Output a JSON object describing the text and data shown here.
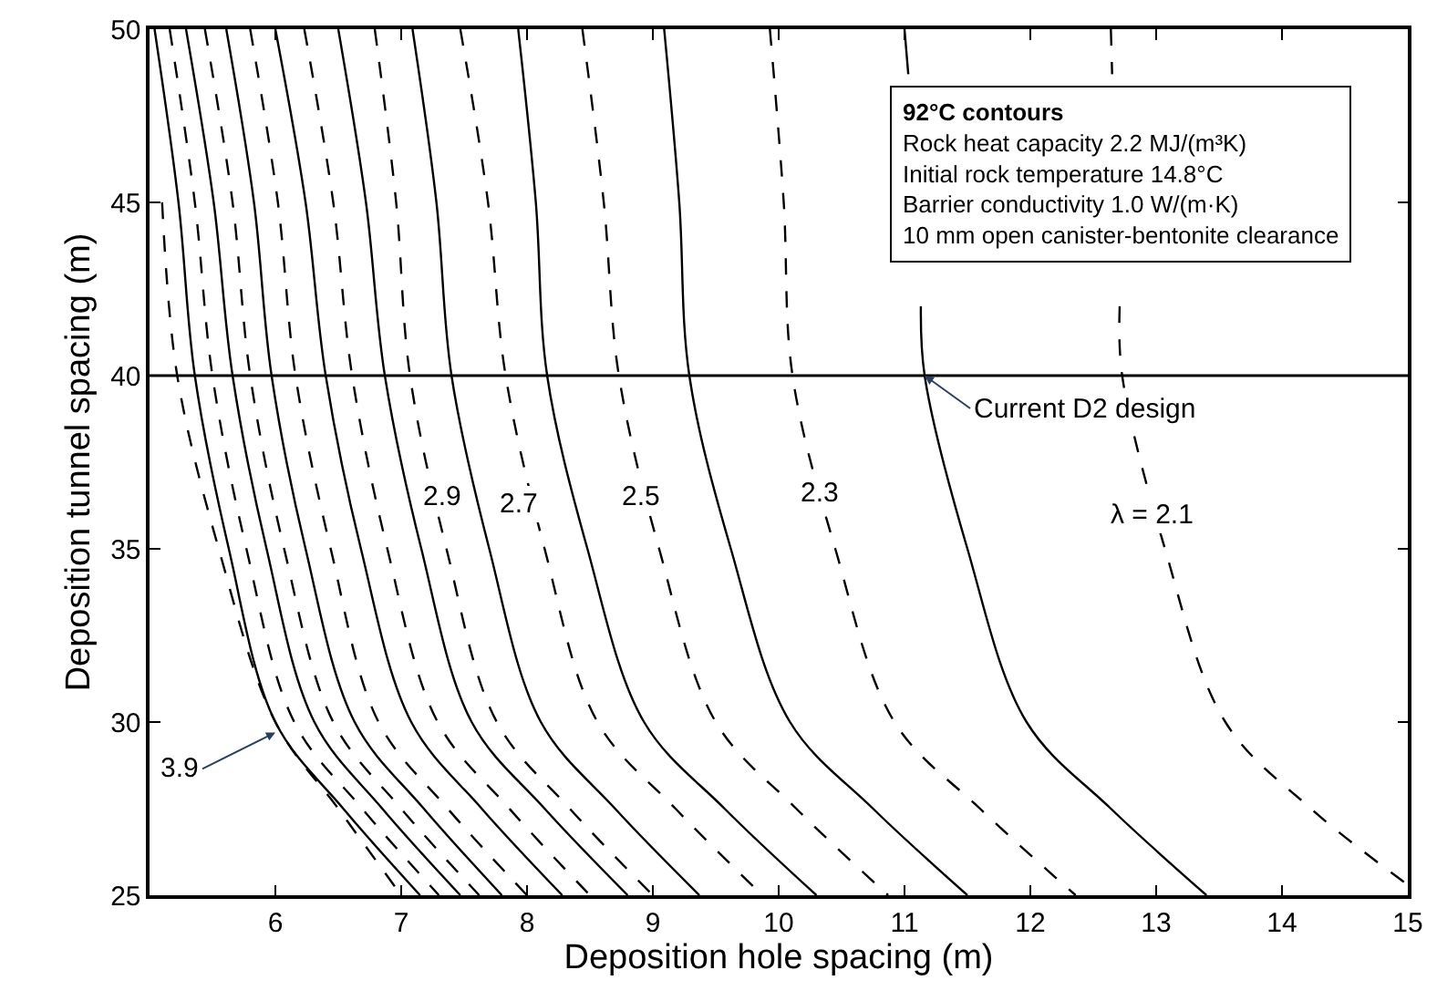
{
  "chart_data": {
    "type": "line",
    "xlabel": "Deposition hole spacing (m)",
    "ylabel": "Deposition tunnel spacing (m)",
    "xlim": [
      5,
      15
    ],
    "ylim": [
      25,
      50
    ],
    "xticks": [
      6,
      7,
      8,
      9,
      10,
      11,
      12,
      13,
      14,
      15
    ],
    "yticks": [
      25,
      30,
      35,
      40,
      45,
      50
    ],
    "marker": "none",
    "series": [
      {
        "color": "#000000",
        "line_style": "dashed",
        "x": [
          5.1,
          5.22,
          5.55,
          6.0,
          6.5,
          7.0
        ],
        "values": [
          45,
          40,
          35,
          30,
          27.5,
          25
        ]
      },
      {
        "color": "#000000",
        "line_style": "solid",
        "x": [
          5.04,
          5.23,
          5.36,
          5.63,
          6.0,
          6.54,
          7.15
        ],
        "values": [
          50,
          45,
          40,
          35,
          30,
          27.5,
          25
        ]
      },
      {
        "color": "#000000",
        "line_style": "dashed",
        "x": [
          5.16,
          5.36,
          5.5,
          5.77,
          6.15,
          6.69,
          7.3
        ],
        "values": [
          50,
          45,
          40,
          35,
          30,
          27.5,
          25
        ]
      },
      {
        "color": "#000000",
        "line_style": "solid",
        "x": [
          5.29,
          5.51,
          5.66,
          5.93,
          6.31,
          6.85,
          7.47
        ],
        "values": [
          50,
          45,
          40,
          35,
          30,
          27.5,
          25
        ]
      },
      {
        "color": "#000000",
        "line_style": "dashed",
        "x": [
          5.44,
          5.66,
          5.8,
          6.07,
          6.46,
          7.0,
          7.62
        ],
        "values": [
          50,
          45,
          40,
          35,
          30,
          27.5,
          25
        ]
      },
      {
        "color": "#000000",
        "line_style": "solid",
        "x": [
          5.61,
          5.83,
          5.97,
          6.24,
          6.63,
          7.18,
          7.8
        ],
        "values": [
          50,
          45,
          40,
          35,
          30,
          27.5,
          25
        ]
      },
      {
        "color": "#000000",
        "line_style": "dashed",
        "x": [
          5.8,
          6.02,
          6.16,
          6.44,
          6.82,
          7.37,
          8.0
        ],
        "values": [
          50,
          45,
          40,
          35,
          30,
          27.5,
          25
        ]
      },
      {
        "color": "#000000",
        "line_style": "solid",
        "x": [
          6.0,
          6.24,
          6.4,
          6.68,
          7.08,
          7.64,
          8.28
        ],
        "values": [
          50,
          45,
          40,
          35,
          30,
          27.5,
          25
        ]
      },
      {
        "color": "#000000",
        "line_style": "dashed",
        "x": [
          6.23,
          6.46,
          6.61,
          6.89,
          7.29,
          7.86,
          8.5
        ],
        "values": [
          50,
          45,
          40,
          35,
          30,
          27.5,
          25
        ]
      },
      {
        "color": "#000000",
        "line_style": "solid",
        "x": [
          6.5,
          6.72,
          6.87,
          7.16,
          7.56,
          8.14,
          8.8
        ],
        "values": [
          50,
          45,
          40,
          35,
          30,
          27.5,
          25
        ]
      },
      {
        "color": "#000000",
        "line_style": "dashed",
        "x": [
          6.79,
          6.96,
          7.07,
          7.36,
          7.76,
          8.34,
          9.0
        ],
        "values": [
          50,
          45,
          40,
          35,
          30,
          27.5,
          25
        ]
      },
      {
        "color": "#000000",
        "line_style": "solid",
        "x": [
          7.09,
          7.28,
          7.4,
          7.7,
          8.11,
          8.7,
          9.37
        ],
        "values": [
          50,
          45,
          40,
          35,
          30,
          27.5,
          25
        ]
      },
      {
        "color": "#000000",
        "line_style": "dashed",
        "x": [
          7.47,
          7.69,
          7.83,
          8.14,
          8.56,
          9.18,
          9.87
        ],
        "values": [
          50,
          45,
          40,
          35,
          30,
          27.5,
          25
        ]
      },
      {
        "color": "#000000",
        "line_style": "solid",
        "x": [
          7.93,
          8.07,
          8.16,
          8.48,
          8.93,
          9.57,
          10.3
        ],
        "values": [
          50,
          45,
          40,
          35,
          30,
          27.5,
          25
        ]
      },
      {
        "color": "#000000",
        "line_style": "dashed",
        "x": [
          8.44,
          8.61,
          8.73,
          9.05,
          9.5,
          10.14,
          10.87
        ],
        "values": [
          50,
          45,
          40,
          35,
          30,
          27.5,
          25
        ]
      },
      {
        "color": "#000000",
        "line_style": "solid",
        "x": [
          9.09,
          9.21,
          9.29,
          9.62,
          10.09,
          10.75,
          11.5
        ],
        "values": [
          50,
          45,
          40,
          35,
          30,
          27.5,
          25
        ]
      },
      {
        "color": "#000000",
        "line_style": "dashed",
        "x": [
          9.93,
          10.04,
          10.11,
          10.45,
          10.92,
          11.6,
          12.36
        ],
        "values": [
          50,
          45,
          40,
          35,
          30,
          27.5,
          25
        ]
      },
      {
        "color": "#000000",
        "line_style": "solid",
        "x": [
          11.0,
          11.03,
          11.1,
          11.13,
          11.16,
          11.5,
          11.97,
          12.64,
          13.4
        ],
        "values": [
          50,
          48.7,
          null,
          42,
          40,
          35,
          30,
          27.5,
          25
        ]
      },
      {
        "color": "#000000",
        "line_style": "dashed",
        "x": [
          12.64,
          12.65,
          12.69,
          12.71,
          12.73,
          13.07,
          13.55,
          14.23,
          15.0
        ],
        "values": [
          50,
          48.7,
          null,
          42,
          40,
          35,
          30,
          27.5,
          25.3
        ]
      }
    ],
    "ref_lines": [
      {
        "axis": "y",
        "value": 40,
        "color": "#000000",
        "line_style": "solid"
      }
    ],
    "annotations": [
      "92°C contours",
      "Rock heat capacity 2.2 MJ/(m³K)",
      "Initial rock temperature 14.8°C",
      "Barrier conductivity 1.0 W/(m·K)",
      "10 mm open canister-bentonite clearance",
      {
        "text": "Current D2 design",
        "x": 11.16,
        "y": 40
      },
      {
        "text": "3.9",
        "x": 6.0,
        "y": 29.7
      },
      {
        "text": "2.9",
        "x": 7.33,
        "y": 36.5
      },
      {
        "text": "2.7",
        "x": 7.93,
        "y": 36.3
      },
      {
        "text": "2.5",
        "x": 8.9,
        "y": 36.5
      },
      {
        "text": "2.3",
        "x": 10.33,
        "y": 36.6
      },
      {
        "text": "λ = 2.1",
        "x": 12.97,
        "y": 36.0
      }
    ]
  }
}
